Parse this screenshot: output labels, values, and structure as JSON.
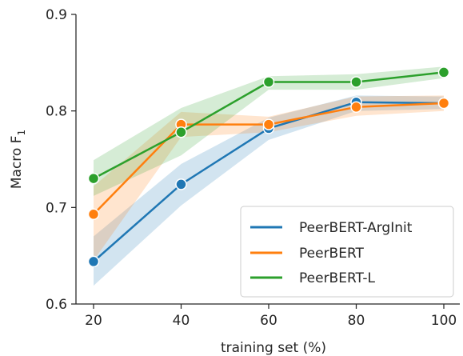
{
  "chart_data": {
    "type": "line",
    "xlabel": "training set (%)",
    "ylabel": "Macro F",
    "ylabel_subscript": "1",
    "x": [
      20,
      40,
      60,
      80,
      100
    ],
    "x_ticks": [
      "20",
      "40",
      "60",
      "80",
      "100"
    ],
    "y_ticks": [
      "0.6",
      "0.7",
      "0.8",
      "0.9"
    ],
    "xlim": [
      20,
      100
    ],
    "ylim": [
      0.6,
      0.9
    ],
    "grid": false,
    "legend_position": "bottom-right",
    "series": [
      {
        "name": "PeerBERT-ArgInit",
        "color": "#1f77b4",
        "values": [
          0.644,
          0.724,
          0.782,
          0.809,
          0.808
        ],
        "band_low": [
          0.619,
          0.702,
          0.77,
          0.8,
          0.802
        ],
        "band_high": [
          0.67,
          0.745,
          0.793,
          0.816,
          0.815
        ]
      },
      {
        "name": "PeerBERT",
        "color": "#ff7f0e",
        "values": [
          0.693,
          0.786,
          0.786,
          0.804,
          0.808
        ],
        "band_low": [
          0.645,
          0.773,
          0.778,
          0.795,
          0.8
        ],
        "band_high": [
          0.722,
          0.799,
          0.794,
          0.815,
          0.816
        ]
      },
      {
        "name": "PeerBERT-L",
        "color": "#2ca02c",
        "values": [
          0.73,
          0.778,
          0.83,
          0.83,
          0.84
        ],
        "band_low": [
          0.712,
          0.754,
          0.822,
          0.822,
          0.834
        ],
        "band_high": [
          0.749,
          0.803,
          0.836,
          0.838,
          0.846
        ]
      }
    ]
  }
}
